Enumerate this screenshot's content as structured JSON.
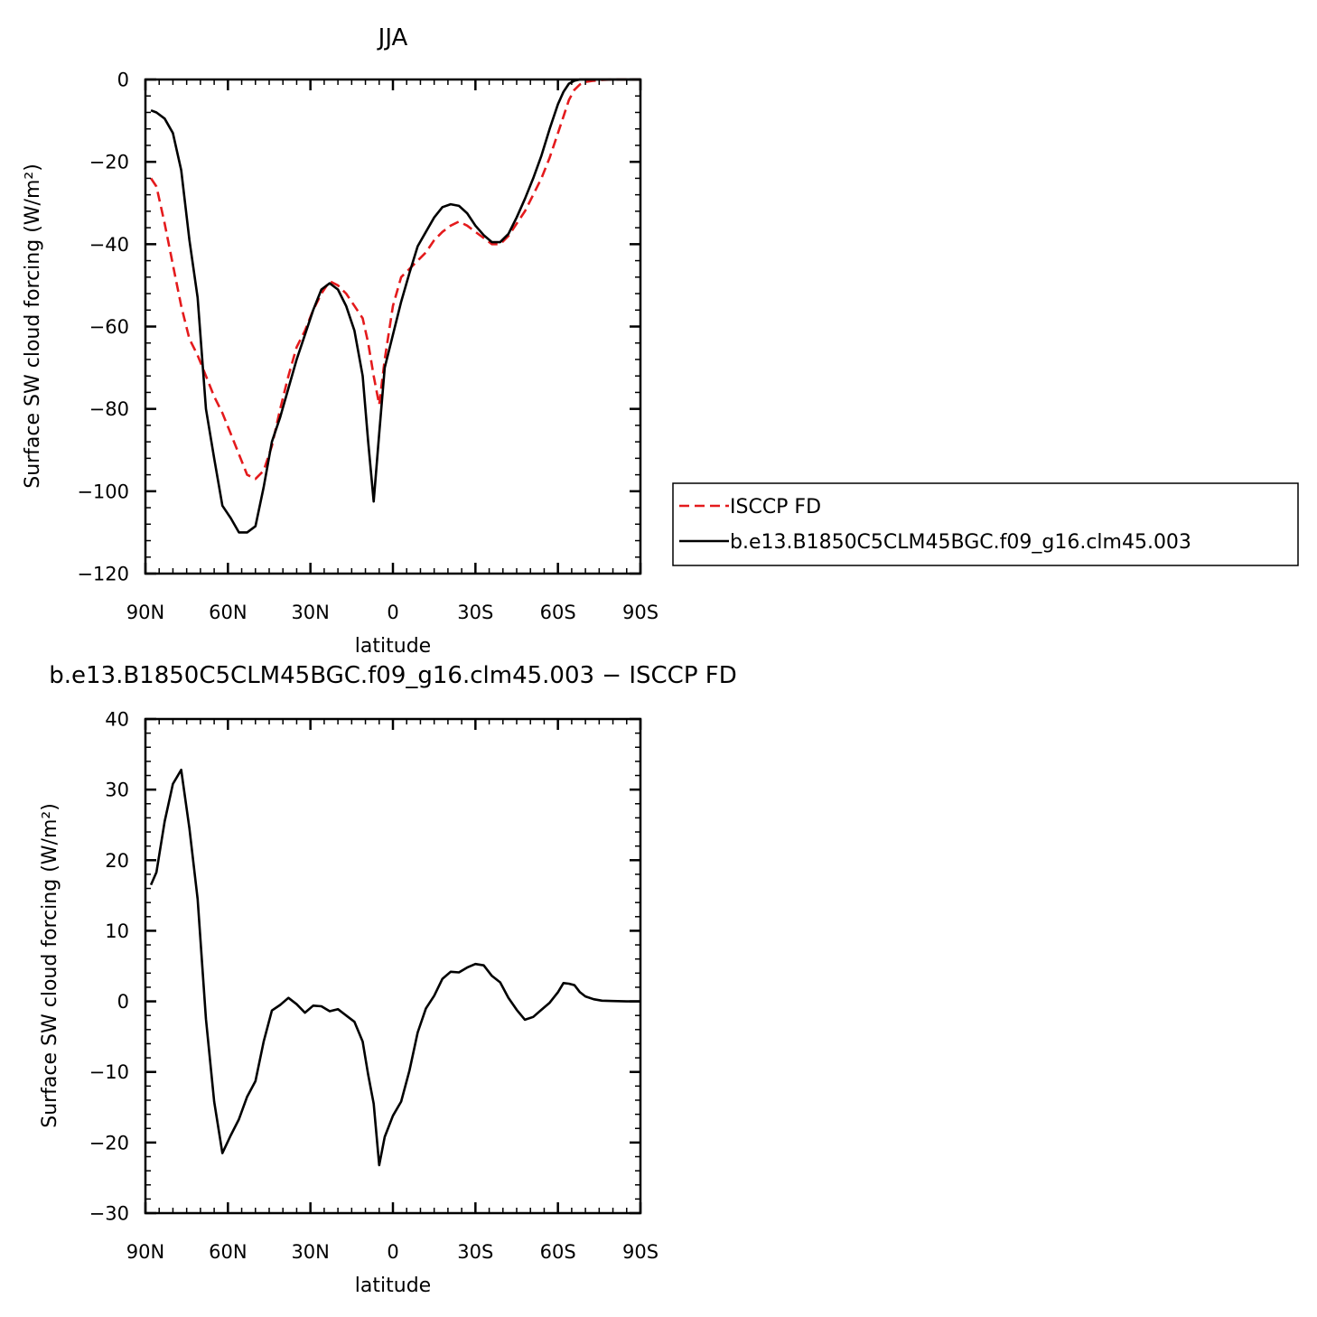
{
  "chart_data": [
    {
      "type": "line",
      "title": "JJA",
      "xlabel": "latitude",
      "ylabel": "Surface SW cloud forcing (W/m²)",
      "xlim": [
        -90,
        90
      ],
      "ylim": [
        -120,
        0
      ],
      "x_ticks": [
        -90,
        -60,
        -30,
        0,
        30,
        60,
        90
      ],
      "x_tick_labels": [
        "90N",
        "60N",
        "30N",
        "0",
        "30S",
        "60S",
        "90S"
      ],
      "y_ticks": [
        0,
        -20,
        -40,
        -60,
        -80,
        -100,
        -120
      ],
      "y_tick_labels": [
        "0",
        "−20",
        "−40",
        "−60",
        "−80",
        "−100",
        "−120"
      ],
      "grid": false,
      "legend_position": "right",
      "series": [
        {
          "name": "ISCCP FD",
          "color": "#e41a1c",
          "dash": "dashed",
          "x": [
            -88,
            -86,
            -83,
            -80,
            -77,
            -74,
            -71,
            -68,
            -65,
            -62,
            -59,
            -56,
            -53,
            -50,
            -47,
            -44,
            -41,
            -38,
            -35,
            -32,
            -29,
            -26,
            -23,
            -20,
            -17,
            -14,
            -11,
            -9,
            -7,
            -5,
            -3,
            0,
            3,
            6,
            9,
            12,
            15,
            18,
            21,
            24,
            27,
            30,
            33,
            36,
            39,
            42,
            45,
            48,
            51,
            54,
            57,
            60,
            62,
            64,
            66,
            68,
            70,
            73,
            76,
            80,
            85,
            90
          ],
          "y": [
            -24,
            -26,
            -35,
            -45,
            -55,
            -63,
            -67,
            -72,
            -77,
            -81,
            -86,
            -91,
            -96,
            -97,
            -95,
            -89,
            -80,
            -72,
            -65,
            -61,
            -56,
            -52,
            -49,
            -50,
            -52,
            -55,
            -58,
            -64,
            -72,
            -79,
            -68,
            -55,
            -48,
            -46,
            -44,
            -42,
            -39,
            -37,
            -35.5,
            -34.5,
            -35.5,
            -37,
            -38.5,
            -40,
            -40,
            -38,
            -35,
            -32,
            -28,
            -24,
            -19,
            -13,
            -9,
            -5,
            -2.5,
            -1.2,
            -0.6,
            -0.3,
            -0.1,
            0,
            0,
            0
          ]
        },
        {
          "name": "b.e13.B1850C5CLM45BGC.f09_g16.clm45.003",
          "color": "#000000",
          "dash": "solid",
          "x": [
            -88,
            -86,
            -83,
            -80,
            -77,
            -74,
            -71,
            -68,
            -65,
            -62,
            -59,
            -56,
            -53,
            -50,
            -47,
            -44,
            -41,
            -38,
            -35,
            -32,
            -29,
            -26,
            -23,
            -20,
            -17,
            -14,
            -11,
            -9,
            -7,
            -5,
            -3,
            0,
            3,
            6,
            9,
            12,
            15,
            18,
            21,
            24,
            27,
            30,
            33,
            36,
            39,
            42,
            45,
            48,
            51,
            54,
            57,
            60,
            62,
            64,
            66,
            68,
            70,
            73,
            76,
            80,
            85,
            90
          ],
          "y": [
            -7.5,
            -8,
            -9.5,
            -13,
            -22,
            -39,
            -53,
            -80,
            -92,
            -103.5,
            -106.5,
            -110,
            -110,
            -108.5,
            -99,
            -88,
            -82,
            -75,
            -68,
            -62,
            -56,
            -51,
            -49.5,
            -51,
            -55,
            -61,
            -72,
            -88,
            -102.5,
            -86,
            -70,
            -62,
            -54,
            -47,
            -40.5,
            -37,
            -33.5,
            -31,
            -30.3,
            -30.7,
            -32.5,
            -35.5,
            -37.8,
            -39.5,
            -39.5,
            -37.5,
            -33.5,
            -29,
            -24,
            -18.5,
            -12,
            -6,
            -3,
            -1,
            -0.3,
            0,
            0,
            0,
            0,
            0,
            0,
            0
          ]
        }
      ]
    },
    {
      "type": "line",
      "title": "b.e13.B1850C5CLM45BGC.f09_g16.clm45.003 − ISCCP FD",
      "xlabel": "latitude",
      "ylabel": "Surface SW cloud forcing (W/m²)",
      "xlim": [
        -90,
        90
      ],
      "ylim": [
        -30,
        40
      ],
      "x_ticks": [
        -90,
        -60,
        -30,
        0,
        30,
        60,
        90
      ],
      "x_tick_labels": [
        "90N",
        "60N",
        "30N",
        "0",
        "30S",
        "60S",
        "90S"
      ],
      "y_ticks": [
        40,
        30,
        20,
        10,
        0,
        -10,
        -20,
        -30
      ],
      "y_tick_labels": [
        "40",
        "30",
        "20",
        "10",
        "0",
        "−10",
        "−20",
        "−30"
      ],
      "grid": false,
      "series": [
        {
          "color": "#000000",
          "dash": "solid",
          "x": [
            -88,
            -86,
            -83,
            -80,
            -77,
            -74,
            -71,
            -68,
            -65,
            -62,
            -59,
            -56,
            -53,
            -50,
            -47,
            -44,
            -41,
            -38,
            -35,
            -32,
            -29,
            -26,
            -23,
            -20,
            -17,
            -14,
            -11,
            -9,
            -7,
            -5,
            -3,
            0,
            3,
            6,
            9,
            12,
            15,
            18,
            21,
            24,
            27,
            30,
            33,
            36,
            39,
            42,
            45,
            48,
            51,
            54,
            57,
            60,
            62,
            64,
            66,
            68,
            70,
            73,
            76,
            80,
            85,
            90
          ],
          "y": [
            16.5,
            18.3,
            25.5,
            30.8,
            32.8,
            24.5,
            14.5,
            -2.5,
            -14.2,
            -21.5,
            -19,
            -16.7,
            -13.5,
            -11.3,
            -5.7,
            -1.3,
            -0.5,
            0.5,
            -0.4,
            -1.6,
            -0.6,
            -0.7,
            -1.4,
            -1.1,
            -2,
            -2.9,
            -5.7,
            -10.4,
            -14.5,
            -23.2,
            -19.2,
            -16.2,
            -14.2,
            -9.8,
            -4.4,
            -1,
            0.8,
            3.2,
            4.2,
            4.1,
            4.8,
            5.3,
            5.1,
            3.6,
            2.7,
            0.5,
            -1.2,
            -2.6,
            -2.2,
            -1.2,
            -0.2,
            1.3,
            2.6,
            2.5,
            2.3,
            1.3,
            0.7,
            0.3,
            0.1,
            0.05,
            0,
            0
          ]
        }
      ]
    }
  ]
}
